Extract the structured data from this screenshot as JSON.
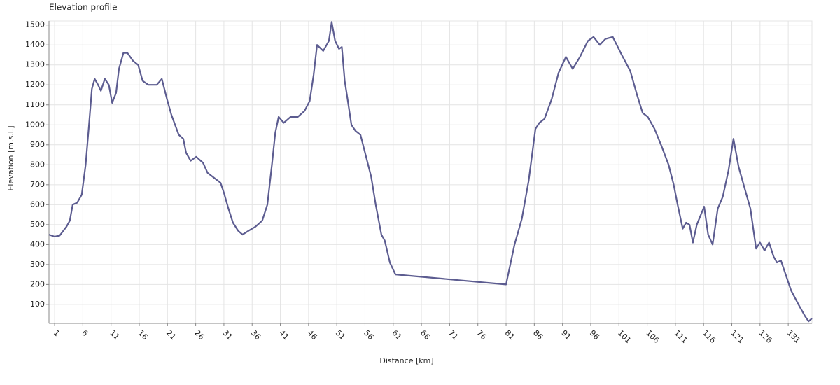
{
  "chart_data": {
    "type": "line",
    "title": "Elevation profile",
    "xlabel": "Distance [km]",
    "ylabel": "Elevation [m.s.l.]",
    "xlim": [
      0,
      135.2
    ],
    "ylim": [
      5,
      1520
    ],
    "xticks": [
      1,
      6,
      11,
      16,
      21,
      26,
      31,
      36,
      41,
      46,
      51,
      56,
      61,
      66,
      71,
      76,
      81,
      86,
      91,
      96,
      101,
      106,
      111,
      116,
      121,
      126,
      131
    ],
    "yticks": [
      100,
      200,
      300,
      400,
      500,
      600,
      700,
      800,
      900,
      1000,
      1100,
      1200,
      1300,
      1400,
      1500
    ],
    "grid": true,
    "series": [
      {
        "color": "#5c5c90",
        "x": [
          0,
          1,
          1.9,
          3.1,
          3.7,
          4.2,
          5,
          5.8,
          6.5,
          7.1,
          7.6,
          8.1,
          8.7,
          9.2,
          9.9,
          10.6,
          11.2,
          11.9,
          12.4,
          13.2,
          13.9,
          14.9,
          15.8,
          16.6,
          17.6,
          19.1,
          20,
          20.9,
          21.7,
          23,
          23.8,
          24.3,
          25.1,
          26.1,
          27.3,
          28.1,
          29,
          30.4,
          31,
          31.8,
          32.6,
          33.5,
          34.3,
          35.4,
          36.6,
          37.8,
          38.7,
          39.5,
          40.1,
          40.7,
          41.6,
          42.8,
          44.1,
          45.3,
          46.2,
          46.9,
          47.5,
          48.6,
          49.6,
          50.1,
          50.7,
          51.4,
          51.9,
          52.4,
          52.9,
          53.6,
          54.3,
          55.2,
          56.1,
          57.1,
          57.9,
          58.9,
          59.5,
          60.4,
          61.4,
          81,
          82.5,
          83.8,
          85,
          86.2,
          86.9,
          87.8,
          89.1,
          90.3,
          91.6,
          92.8,
          94.1,
          95.5,
          96.5,
          97.6,
          98.6,
          99.9,
          101.5,
          103,
          104.2,
          105.2,
          106.1,
          107.3,
          108.6,
          109.8,
          110.7,
          111.4,
          112.3,
          112.9,
          113.5,
          114.1,
          114.8,
          116.1,
          116.8,
          117.6,
          118.5,
          119.4,
          120.4,
          121.3,
          122.2,
          123.1,
          124.3,
          125.3,
          126,
          126.8,
          127.6,
          128.4,
          129,
          129.7,
          130.3,
          131.5,
          132.8,
          134,
          134.6,
          135.2
        ],
        "values": [
          450,
          440,
          445,
          490,
          520,
          600,
          610,
          650,
          800,
          1000,
          1180,
          1230,
          1200,
          1170,
          1230,
          1200,
          1110,
          1160,
          1280,
          1360,
          1360,
          1320,
          1300,
          1220,
          1200,
          1200,
          1230,
          1130,
          1050,
          950,
          930,
          860,
          820,
          840,
          810,
          760,
          740,
          710,
          660,
          580,
          510,
          470,
          450,
          470,
          490,
          520,
          600,
          800,
          960,
          1040,
          1010,
          1040,
          1040,
          1070,
          1120,
          1250,
          1400,
          1370,
          1420,
          1515,
          1420,
          1380,
          1390,
          1220,
          1130,
          1000,
          970,
          950,
          850,
          740,
          600,
          450,
          420,
          310,
          250,
          200,
          400,
          530,
          720,
          980,
          1010,
          1030,
          1130,
          1260,
          1340,
          1280,
          1340,
          1420,
          1440,
          1400,
          1430,
          1440,
          1350,
          1270,
          1150,
          1060,
          1040,
          980,
          890,
          800,
          700,
          600,
          480,
          510,
          500,
          410,
          500,
          590,
          450,
          400,
          580,
          640,
          770,
          930,
          790,
          700,
          580,
          380,
          410,
          370,
          410,
          340,
          310,
          320,
          270,
          170,
          100,
          40,
          15,
          30
        ]
      }
    ]
  }
}
